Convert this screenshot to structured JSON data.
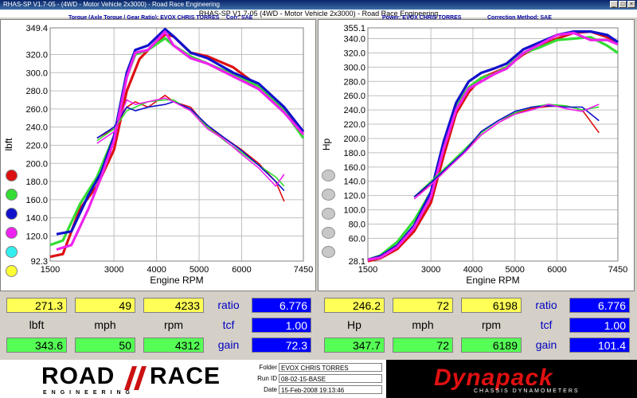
{
  "window": {
    "title": "RHAS-SP V1.7-05 - (4WD - Motor Vehicle 2x3000) - Road Race Engineering",
    "app_title": "RHAS-SP V1.7-05   (4WD - Motor Vehicle 2x3000) - Road Race Engineering"
  },
  "left_panel": {
    "header_left": "Torque (Axle Torque / Gear Ratio): EVOX CHRIS TORRES",
    "header_right": "Corr: SAE"
  },
  "right_panel": {
    "header_left": "Power: EVOX CHRIS TORRES",
    "header_right": "Correction Method: SAE"
  },
  "colors": {
    "red": "#dd1111",
    "green": "#33dd33",
    "blue": "#1111cc",
    "magenta": "#ee22ee",
    "cyan": "#33eeee",
    "yellow": "#ffff33"
  },
  "chart_data": [
    {
      "type": "line",
      "xlabel": "Engine RPM",
      "ylabel": "lbft",
      "xlim": [
        1500,
        7450
      ],
      "ylim": [
        92.3,
        349.4
      ],
      "x_ticks": [
        "1500",
        "3000",
        "4000",
        "5000",
        "6000",
        "7450"
      ],
      "y_ticks": [
        "92.3",
        "120.0",
        "140.0",
        "160.0",
        "180.0",
        "200.0",
        "220.0",
        "240.0",
        "260.0",
        "280.0",
        "300.0",
        "320.0",
        "349.4"
      ],
      "y_tick_values": [
        92.3,
        120,
        140,
        160,
        180,
        200,
        220,
        240,
        260,
        280,
        300,
        320,
        349.4
      ],
      "x_tick_values": [
        1500,
        3000,
        4000,
        5000,
        6000,
        7450
      ],
      "grid": true,
      "series": [
        {
          "color": "red",
          "x": [
            1500,
            1800,
            2200,
            2600,
            3000,
            3300,
            3600,
            3900,
            4200,
            4400,
            4800,
            5200,
            5800,
            6400,
            7000,
            7450
          ],
          "values": [
            97,
            100,
            150,
            175,
            215,
            280,
            315,
            330,
            342,
            340,
            322,
            318,
            306,
            285,
            260,
            235
          ]
        },
        {
          "color": "green",
          "x": [
            1500,
            1800,
            2200,
            2600,
            3000,
            3300,
            3500,
            3800,
            4200,
            4400,
            4800,
            5200,
            5800,
            6400,
            7000,
            7450
          ],
          "values": [
            110,
            115,
            155,
            185,
            230,
            295,
            320,
            325,
            338,
            330,
            318,
            310,
            298,
            285,
            258,
            228
          ]
        },
        {
          "color": "blue",
          "x": [
            1650,
            2000,
            2400,
            2700,
            3000,
            3300,
            3500,
            3800,
            4200,
            4400,
            4800,
            5200,
            5800,
            6400,
            7000,
            7450
          ],
          "values": [
            122,
            125,
            165,
            190,
            230,
            300,
            325,
            330,
            348,
            340,
            322,
            316,
            300,
            288,
            262,
            235
          ]
        },
        {
          "color": "magenta",
          "x": [
            1650,
            2000,
            2400,
            2700,
            3000,
            3300,
            3500,
            3800,
            4200,
            4400,
            4800,
            5200,
            5800,
            6400,
            7000,
            7450
          ],
          "values": [
            105,
            110,
            150,
            185,
            225,
            295,
            322,
            325,
            345,
            330,
            316,
            310,
            296,
            282,
            256,
            232
          ]
        },
        {
          "color": "red",
          "x": [
            2600,
            3000,
            3300,
            3500,
            3800,
            4200,
            4400,
            4800,
            5200,
            5600,
            6000,
            6400,
            6800,
            7000
          ],
          "values": [
            228,
            238,
            262,
            268,
            262,
            275,
            268,
            262,
            240,
            228,
            215,
            200,
            180,
            158
          ]
        },
        {
          "color": "green",
          "x": [
            2600,
            3000,
            3300,
            3500,
            3800,
            4200,
            4400,
            4800,
            5200,
            5600,
            6000,
            6400,
            6800,
            7000
          ],
          "values": [
            225,
            238,
            258,
            262,
            268,
            270,
            270,
            258,
            240,
            225,
            212,
            198,
            185,
            175
          ]
        },
        {
          "color": "blue",
          "x": [
            2600,
            3000,
            3300,
            3500,
            3800,
            4200,
            4400,
            4800,
            5200,
            5600,
            6000,
            6400,
            6800,
            7000
          ],
          "values": [
            228,
            240,
            262,
            258,
            262,
            265,
            268,
            260,
            242,
            228,
            214,
            198,
            180,
            170
          ]
        },
        {
          "color": "magenta",
          "x": [
            2600,
            3000,
            3300,
            3500,
            3800,
            4200,
            4400,
            4800,
            5200,
            5600,
            6000,
            6400,
            6800,
            7000
          ],
          "values": [
            222,
            235,
            270,
            265,
            268,
            272,
            268,
            258,
            238,
            226,
            210,
            195,
            175,
            188
          ]
        }
      ]
    },
    {
      "type": "line",
      "xlabel": "Engine RPM",
      "ylabel": "Hp",
      "xlim": [
        1500,
        7450
      ],
      "ylim": [
        28.1,
        355.1
      ],
      "x_ticks": [
        "1500",
        "3000",
        "4000",
        "5000",
        "6000",
        "7450"
      ],
      "y_ticks": [
        "28.1",
        "60.0",
        "80.0",
        "100.0",
        "120.0",
        "140.0",
        "160.0",
        "180.0",
        "200.0",
        "220.0",
        "240.0",
        "260.0",
        "280.0",
        "300.0",
        "320.0",
        "340.0",
        "355.1"
      ],
      "y_tick_values": [
        28.1,
        60,
        80,
        100,
        120,
        140,
        160,
        180,
        200,
        220,
        240,
        260,
        280,
        300,
        320,
        340,
        355.1
      ],
      "x_tick_values": [
        1500,
        3000,
        4000,
        5000,
        6000,
        7450
      ],
      "grid": true,
      "series": [
        {
          "color": "red",
          "x": [
            1500,
            1800,
            2200,
            2600,
            3000,
            3300,
            3600,
            3900,
            4200,
            4500,
            4800,
            5200,
            5600,
            6000,
            6400,
            6800,
            7200,
            7450
          ],
          "values": [
            28,
            32,
            45,
            70,
            110,
            175,
            235,
            265,
            285,
            292,
            300,
            318,
            330,
            340,
            348,
            350,
            342,
            335
          ]
        },
        {
          "color": "green",
          "x": [
            1500,
            1800,
            2200,
            2600,
            3000,
            3300,
            3600,
            3900,
            4200,
            4500,
            4800,
            5200,
            5600,
            6000,
            6400,
            6800,
            7200,
            7450
          ],
          "values": [
            30,
            36,
            55,
            85,
            125,
            190,
            245,
            272,
            285,
            290,
            300,
            320,
            328,
            338,
            340,
            342,
            330,
            320
          ]
        },
        {
          "color": "blue",
          "x": [
            1500,
            1800,
            2200,
            2600,
            3000,
            3300,
            3600,
            3900,
            4200,
            4500,
            4800,
            5200,
            5600,
            6000,
            6400,
            6800,
            7200,
            7450
          ],
          "values": [
            30,
            35,
            50,
            78,
            125,
            195,
            250,
            280,
            292,
            298,
            305,
            325,
            335,
            345,
            350,
            350,
            345,
            335
          ]
        },
        {
          "color": "magenta",
          "x": [
            1500,
            1800,
            2200,
            2600,
            3000,
            3300,
            3600,
            3900,
            4200,
            4500,
            4800,
            5200,
            5600,
            6000,
            6400,
            6800,
            7200,
            7450
          ],
          "values": [
            30,
            33,
            48,
            75,
            118,
            185,
            240,
            270,
            280,
            290,
            298,
            320,
            332,
            345,
            348,
            338,
            338,
            332
          ]
        },
        {
          "color": "red",
          "x": [
            2600,
            3000,
            3400,
            3800,
            4200,
            4600,
            5000,
            5400,
            5800,
            6200,
            6600,
            7000
          ],
          "values": [
            118,
            135,
            158,
            182,
            205,
            222,
            235,
            242,
            245,
            246,
            240,
            208
          ]
        },
        {
          "color": "green",
          "x": [
            2600,
            3000,
            3400,
            3800,
            4200,
            4600,
            5000,
            5400,
            5800,
            6200,
            6600,
            7000
          ],
          "values": [
            118,
            140,
            162,
            185,
            208,
            225,
            236,
            244,
            248,
            246,
            240,
            244
          ]
        },
        {
          "color": "blue",
          "x": [
            2600,
            3000,
            3400,
            3800,
            4200,
            4600,
            5000,
            5400,
            5800,
            6200,
            6600,
            7000
          ],
          "values": [
            118,
            138,
            160,
            182,
            210,
            225,
            238,
            244,
            246,
            244,
            244,
            225
          ]
        },
        {
          "color": "magenta",
          "x": [
            2600,
            3000,
            3400,
            3800,
            4200,
            4600,
            5000,
            5400,
            5800,
            6200,
            6600,
            7000
          ],
          "values": [
            115,
            135,
            158,
            180,
            205,
            222,
            234,
            240,
            248,
            242,
            238,
            248
          ]
        }
      ]
    }
  ],
  "readouts": {
    "left": {
      "row1": [
        "271.3",
        "49",
        "4233"
      ],
      "row3": [
        "343.6",
        "50",
        "4312"
      ],
      "units": [
        "lbft",
        "mph",
        "rpm"
      ],
      "ratio_label": "ratio",
      "ratio": "6.776",
      "tcf_label": "tcf",
      "tcf": "1.00",
      "gain_label": "gain",
      "gain": "72.3"
    },
    "right": {
      "row1": [
        "246.2",
        "72",
        "6198"
      ],
      "row3": [
        "347.7",
        "72",
        "6189"
      ],
      "units": [
        "Hp",
        "mph",
        "rpm"
      ],
      "ratio_label": "ratio",
      "ratio": "6.776",
      "tcf_label": "tcf",
      "tcf": "1.00",
      "gain_label": "gain",
      "gain": "101.4"
    }
  },
  "footer": {
    "logo_left": "ROAD",
    "logo_right": "RACE",
    "logo_sub": "ENGINEERING",
    "folder_label": "Folder",
    "folder": "EVOX CHRIS TORRES",
    "runid_label": "Run ID",
    "runid": "08-02-15-BASE",
    "date_label": "Date",
    "date": "15-Feb-2008   19:13:46",
    "brand": "Dynapack",
    "brand_tag": "CHASSIS DYNAMOMETERS"
  }
}
